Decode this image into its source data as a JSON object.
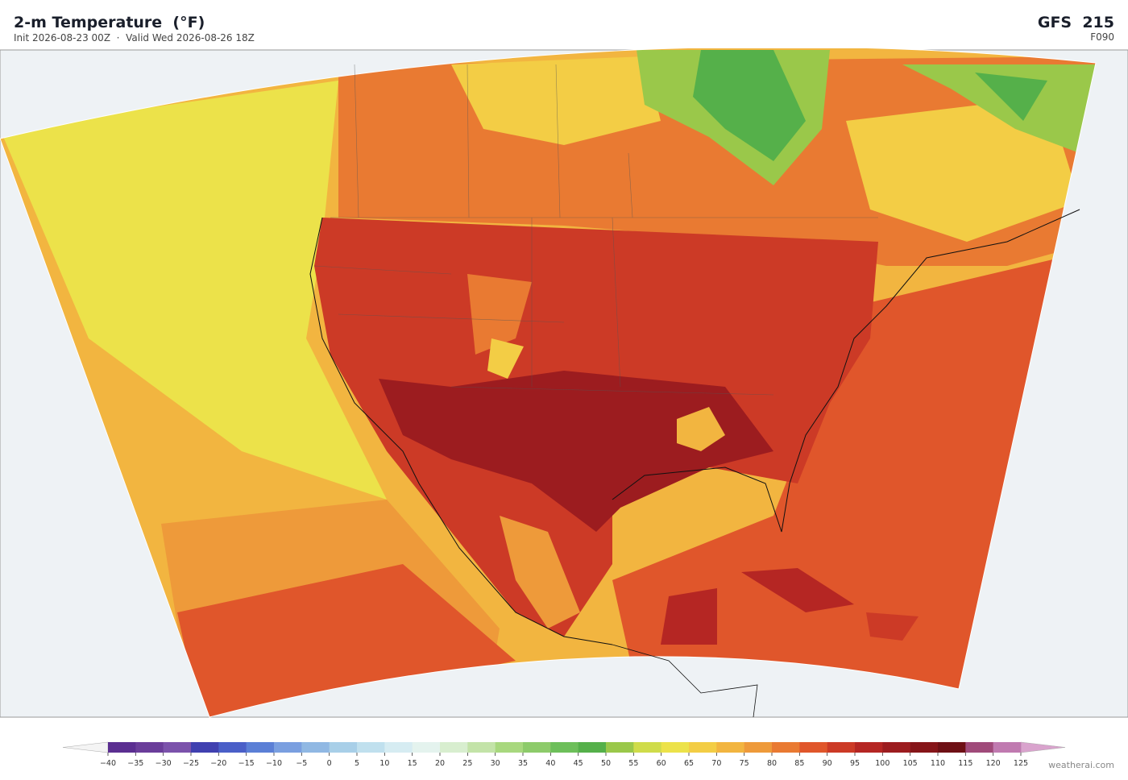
{
  "header": {
    "title": "2-m Temperature  (°F)",
    "subtitle": "Init 2026-08-23 00Z  ·  Valid Wed 2026-08-26 18Z",
    "model": "GFS  215",
    "forecast_hour": "F090"
  },
  "colorbar": {
    "ticks": [
      {
        "value": -40,
        "label": "−40"
      },
      {
        "value": -35,
        "label": "−35"
      },
      {
        "value": -30,
        "label": "−30"
      },
      {
        "value": -25,
        "label": "−25"
      },
      {
        "value": -20,
        "label": "−20"
      },
      {
        "value": -15,
        "label": "−15"
      },
      {
        "value": -10,
        "label": "−10"
      },
      {
        "value": -5,
        "label": "−5"
      },
      0,
      5,
      10,
      15,
      20,
      25,
      30,
      35,
      40,
      45,
      50,
      55,
      60,
      65,
      70,
      75,
      80,
      85,
      90,
      95,
      100,
      105,
      110,
      115,
      120,
      125
    ],
    "colors": [
      "#5b2e91",
      "#6a3d9a",
      "#7b52ab",
      "#4040b0",
      "#4a5fc8",
      "#5b7fd6",
      "#7a9fe0",
      "#90b8e3",
      "#a8cfe8",
      "#c0e0ee",
      "#d6ecf2",
      "#e4f3ee",
      "#d8eecf",
      "#c3e3a8",
      "#a8d87e",
      "#8dcb6a",
      "#6dbf5a",
      "#55b04a",
      "#9ac84a",
      "#cfdc4a",
      "#ece24a",
      "#f3cd45",
      "#f2b540",
      "#ee9a3a",
      "#e97a32",
      "#e0562b",
      "#cc3a26",
      "#b52623",
      "#9c1c1f",
      "#861519",
      "#6e1015",
      "#a04a7a",
      "#c07ab0"
    ],
    "under_color": "#f4f4f4",
    "over_color": "#d9a3cd"
  },
  "footer": {
    "credit": "weatherai.com"
  }
}
